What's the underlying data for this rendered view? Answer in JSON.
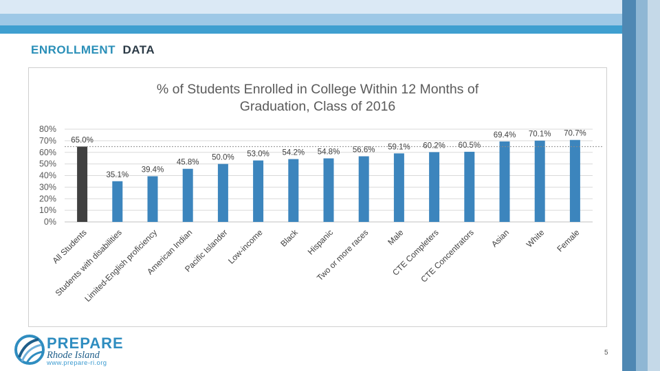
{
  "slide": {
    "title_part1": "ENROLLMENT",
    "title_part2": "DATA",
    "page_number": "5"
  },
  "logo": {
    "name": "PREPARE",
    "subtitle": "Rhode Island",
    "url": "www.prepare-ri.org"
  },
  "colors": {
    "highlight_bar": "#404040",
    "bar": "#3c85bd",
    "title_accent": "#2a8fb8"
  },
  "chart_data": {
    "type": "bar",
    "title_line1": "% of Students Enrolled in College Within 12 Months of",
    "title_line2": "Graduation, Class of 2016",
    "categories": [
      "All Students",
      "Students with disabilities",
      "Limited-English proficiency",
      "American Indian",
      "Pacific Islander",
      "Low-income",
      "Black",
      "Hispanic",
      "Two or more races",
      "Male",
      "CTE Completers",
      "CTE Concentrators",
      "Asian",
      "White",
      "Female"
    ],
    "values": [
      65.0,
      35.1,
      39.4,
      45.8,
      50.0,
      53.0,
      54.2,
      54.8,
      56.6,
      59.1,
      60.2,
      60.5,
      69.4,
      70.1,
      70.7
    ],
    "data_labels": [
      "65.0%",
      "35.1%",
      "39.4%",
      "45.8%",
      "50.0%",
      "53.0%",
      "54.2%",
      "54.8%",
      "56.6%",
      "59.1%",
      "60.2%",
      "60.5%",
      "69.4%",
      "70.1%",
      "70.7%"
    ],
    "yticks": [
      0,
      10,
      20,
      30,
      40,
      50,
      60,
      70,
      80
    ],
    "ytick_labels": [
      "0%",
      "10%",
      "20%",
      "30%",
      "40%",
      "50%",
      "60%",
      "70%",
      "80%"
    ],
    "ylim": [
      0,
      80
    ],
    "reference_line": 65.0,
    "highlight_index": 0,
    "grid": true,
    "xlabel": "",
    "ylabel": ""
  }
}
